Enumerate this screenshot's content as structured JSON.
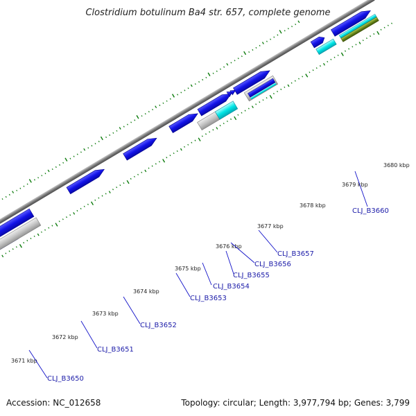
{
  "title": "Clostridium botulinum Ba4 str. 657, complete genome",
  "footer": {
    "accession": "Accession: NC_012658",
    "summary": "Topology: circular; Length: 3,977,794 bp; Genes: 3,799"
  },
  "colors": {
    "backbone": "#8a8a8a",
    "tick": "#0a7a0a",
    "forward_gene": "#1010e6",
    "gene_outline": "#00008a",
    "cds_cyan": "#00e4e4",
    "cds_grey": "#c4c4c4",
    "cds_olive": "#6a8a1a",
    "label_line": "#1010c8",
    "label_text": "#1a1aa8"
  },
  "scale_labels": [
    "3671 kbp",
    "3672 kbp",
    "3673 kbp",
    "3674 kbp",
    "3675 kbp",
    "3676 kbp",
    "3677 kbp",
    "3678 kbp",
    "3679 kbp",
    "3680 kbp"
  ],
  "gene_labels": [
    "CLJ_B3650",
    "CLJ_B3651",
    "CLJ_B3652",
    "CLJ_B3653",
    "CLJ_B3654",
    "CLJ_B3655",
    "CLJ_B3656",
    "CLJ_B3657",
    "CLJ_B3660"
  ]
}
